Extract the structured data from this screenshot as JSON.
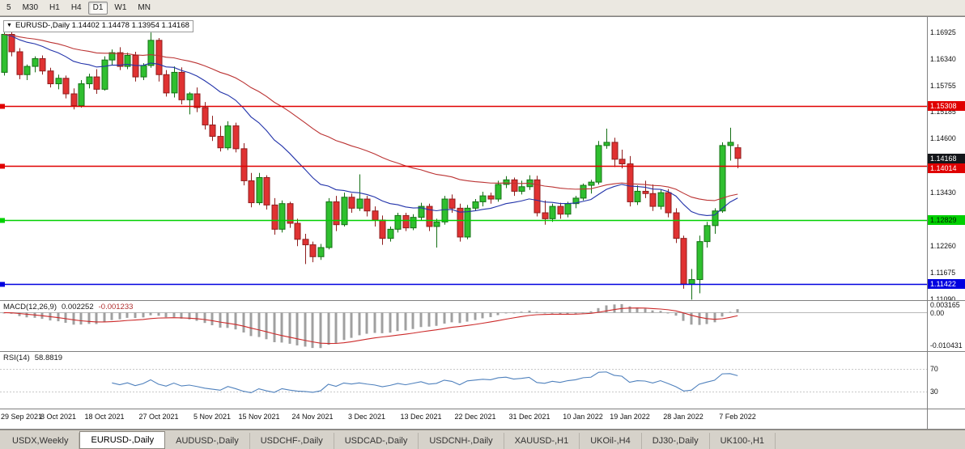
{
  "toolbar": {
    "items": [
      {
        "label": "5"
      },
      {
        "label": "M30"
      },
      {
        "label": "H1"
      },
      {
        "label": "H4"
      },
      {
        "label": "D1",
        "active": true
      },
      {
        "label": "W1"
      },
      {
        "label": "MN"
      }
    ]
  },
  "chart": {
    "menu_icon": "▼",
    "title": "EURUSD-,Daily 1.14402 1.14478 1.13954 1.14168"
  },
  "price_axis_ticks": [
    "1.16925",
    "1.16340",
    "1.15755",
    "1.15185",
    "1.14600",
    "1.14015",
    "1.13430",
    "1.12845",
    "1.12260",
    "1.11675",
    "1.11090"
  ],
  "hlines": [
    {
      "price": 1.15308,
      "label": "1.15308",
      "color": "#e00000",
      "text_color": "#ffffff"
    },
    {
      "price": 1.14014,
      "label": "1.14014",
      "color": "#e00000",
      "text_color": "#ffffff"
    },
    {
      "price": 1.12829,
      "label": "1.12829",
      "color": "#00d000",
      "text_color": "#002200"
    },
    {
      "price": 1.11422,
      "label": "1.11422",
      "color": "#0000e0",
      "text_color": "#ffffff"
    }
  ],
  "current_price": {
    "value": 1.14168,
    "label": "1.14168",
    "bg": "#14161a",
    "text_color": "#ffffff"
  },
  "indicators": {
    "macd": {
      "label": "MACD(12,26,9)",
      "value_main": "0.002252",
      "value_signal": "-0.001233",
      "axis_max_label": "0.003165",
      "axis_zero_label": "0.00",
      "axis_min_label": "-0.010431",
      "scale_max": 0.003165,
      "scale_min": -0.010431,
      "fast": 12,
      "slow": 26,
      "signal": 9,
      "histogram_color": "#a0a0a0",
      "signal_color": "#cc2a2a"
    },
    "rsi": {
      "label": "RSI(14)",
      "value": "58.8819",
      "period": 14,
      "levels": [
        70,
        30
      ],
      "level_labels": [
        "70",
        "30"
      ],
      "line_color": "#4f81bd"
    }
  },
  "tabs": [
    {
      "label": "USDX,Weekly"
    },
    {
      "label": "EURUSD-,Daily",
      "active": true
    },
    {
      "label": "AUDUSD-,Daily"
    },
    {
      "label": "USDCHF-,Daily"
    },
    {
      "label": "USDCAD-,Daily"
    },
    {
      "label": "USDCNH-,Daily"
    },
    {
      "label": "XAUUSD-,H1"
    },
    {
      "label": "UKOil-,H4"
    },
    {
      "label": "DJ30-,Daily"
    },
    {
      "label": "UK100-,H1"
    }
  ],
  "chart_data": {
    "type": "candlestick",
    "symbol": "EURUSD-",
    "timeframe": "Daily",
    "title": "EURUSD-,Daily",
    "current_ohlc": {
      "open": 1.14402,
      "high": 1.14478,
      "low": 1.13954,
      "close": 1.14168
    },
    "price_max": 1.1726,
    "price_min": 1.1107,
    "total_slots": 120,
    "up_color": "#2fbf2f",
    "up_border": "#157015",
    "down_color": "#e03232",
    "down_border": "#8f1d1d",
    "ma_lines": [
      {
        "name": "ma-fast-blue",
        "period": 20,
        "color": "#2233aa"
      },
      {
        "name": "ma-slow-red",
        "period": 45,
        "color": "#bb3333"
      }
    ],
    "date_ticks": [
      {
        "index": 0,
        "label": "29 Sep 2021"
      },
      {
        "index": 7,
        "label": "8 Oct 2021"
      },
      {
        "index": 13,
        "label": "18 Oct 2021"
      },
      {
        "index": 20,
        "label": "27 Oct 2021"
      },
      {
        "index": 27,
        "label": "5 Nov 2021"
      },
      {
        "index": 33,
        "label": "15 Nov 2021"
      },
      {
        "index": 40,
        "label": "24 Nov 2021"
      },
      {
        "index": 47,
        "label": "3 Dec 2021"
      },
      {
        "index": 54,
        "label": "13 Dec 2021"
      },
      {
        "index": 61,
        "label": "22 Dec 2021"
      },
      {
        "index": 68,
        "label": "31 Dec 2021"
      },
      {
        "index": 75,
        "label": "10 Jan 2022"
      },
      {
        "index": 81,
        "label": "19 Jan 2022"
      },
      {
        "index": 88,
        "label": "28 Jan 2022"
      },
      {
        "index": 95,
        "label": "7 Feb 2022"
      }
    ],
    "candles": [
      [
        1.1605,
        1.1692,
        1.1598,
        1.1688
      ],
      [
        1.1688,
        1.1695,
        1.164,
        1.165
      ],
      [
        1.165,
        1.1658,
        1.159,
        1.16
      ],
      [
        1.16,
        1.1622,
        1.1588,
        1.1618
      ],
      [
        1.1618,
        1.164,
        1.1605,
        1.1635
      ],
      [
        1.1635,
        1.1642,
        1.16,
        1.1608
      ],
      [
        1.1608,
        1.1615,
        1.1572,
        1.158
      ],
      [
        1.158,
        1.16,
        1.1568,
        1.1592
      ],
      [
        1.1592,
        1.1598,
        1.1548,
        1.1558
      ],
      [
        1.1558,
        1.157,
        1.1524,
        1.1532
      ],
      [
        1.1532,
        1.1588,
        1.1528,
        1.158
      ],
      [
        1.158,
        1.1602,
        1.157,
        1.1595
      ],
      [
        1.1595,
        1.1612,
        1.1558,
        1.1568
      ],
      [
        1.1568,
        1.164,
        1.1565,
        1.1632
      ],
      [
        1.1632,
        1.1655,
        1.162,
        1.1648
      ],
      [
        1.1648,
        1.166,
        1.161,
        1.1618
      ],
      [
        1.1618,
        1.1648,
        1.1612,
        1.1642
      ],
      [
        1.1642,
        1.165,
        1.1585,
        1.1595
      ],
      [
        1.1595,
        1.1625,
        1.1588,
        1.162
      ],
      [
        1.162,
        1.1692,
        1.1615,
        1.1675
      ],
      [
        1.1675,
        1.168,
        1.1585,
        1.16
      ],
      [
        1.16,
        1.161,
        1.1552,
        1.156
      ],
      [
        1.156,
        1.1618,
        1.155,
        1.1605
      ],
      [
        1.1605,
        1.1616,
        1.1535,
        1.1545
      ],
      [
        1.1545,
        1.1562,
        1.1513,
        1.1558
      ],
      [
        1.1558,
        1.1572,
        1.1518,
        1.1528
      ],
      [
        1.1528,
        1.154,
        1.148,
        1.149
      ],
      [
        1.149,
        1.151,
        1.1455,
        1.1465
      ],
      [
        1.1465,
        1.1488,
        1.1432,
        1.144
      ],
      [
        1.144,
        1.1498,
        1.1435,
        1.1488
      ],
      [
        1.1488,
        1.1495,
        1.143,
        1.1438
      ],
      [
        1.1438,
        1.145,
        1.1358,
        1.1368
      ],
      [
        1.1368,
        1.1385,
        1.131,
        1.132
      ],
      [
        1.132,
        1.1385,
        1.1315,
        1.1375
      ],
      [
        1.1375,
        1.138,
        1.1305,
        1.1315
      ],
      [
        1.1315,
        1.133,
        1.125,
        1.1262
      ],
      [
        1.1262,
        1.1325,
        1.1255,
        1.1318
      ],
      [
        1.1318,
        1.1322,
        1.1265,
        1.1275
      ],
      [
        1.1275,
        1.1285,
        1.1225,
        1.124
      ],
      [
        1.124,
        1.1252,
        1.1186,
        1.1228
      ],
      [
        1.1228,
        1.1235,
        1.119,
        1.1202
      ],
      [
        1.1202,
        1.123,
        1.1195,
        1.1222
      ],
      [
        1.1222,
        1.133,
        1.1218,
        1.1322
      ],
      [
        1.1322,
        1.1335,
        1.1258,
        1.1272
      ],
      [
        1.1272,
        1.1342,
        1.1268,
        1.1332
      ],
      [
        1.1332,
        1.134,
        1.1298,
        1.1308
      ],
      [
        1.1308,
        1.1382,
        1.1302,
        1.1328
      ],
      [
        1.1328,
        1.1335,
        1.129,
        1.1302
      ],
      [
        1.1302,
        1.1312,
        1.1268,
        1.1282
      ],
      [
        1.1282,
        1.1292,
        1.1228,
        1.1242
      ],
      [
        1.1242,
        1.1268,
        1.1235,
        1.1262
      ],
      [
        1.1262,
        1.1298,
        1.1255,
        1.1292
      ],
      [
        1.1292,
        1.1298,
        1.1258,
        1.1265
      ],
      [
        1.1265,
        1.1295,
        1.126,
        1.1288
      ],
      [
        1.1288,
        1.132,
        1.1282,
        1.1312
      ],
      [
        1.1312,
        1.1318,
        1.1258,
        1.1268
      ],
      [
        1.1268,
        1.1285,
        1.1222,
        1.1278
      ],
      [
        1.1278,
        1.1335,
        1.1272,
        1.1328
      ],
      [
        1.1328,
        1.1338,
        1.1298,
        1.1308
      ],
      [
        1.1308,
        1.1318,
        1.1235,
        1.1245
      ],
      [
        1.1245,
        1.1315,
        1.124,
        1.1308
      ],
      [
        1.1308,
        1.1328,
        1.1302,
        1.1322
      ],
      [
        1.1322,
        1.1344,
        1.1312,
        1.1335
      ],
      [
        1.1335,
        1.1342,
        1.1318,
        1.1328
      ],
      [
        1.1328,
        1.1368,
        1.1322,
        1.136
      ],
      [
        1.136,
        1.1378,
        1.1352,
        1.137
      ],
      [
        1.137,
        1.1375,
        1.1335,
        1.1345
      ],
      [
        1.1345,
        1.1368,
        1.1338,
        1.1355
      ],
      [
        1.1355,
        1.138,
        1.1348,
        1.137
      ],
      [
        1.137,
        1.1379,
        1.129,
        1.1298
      ],
      [
        1.1298,
        1.1325,
        1.1272,
        1.1285
      ],
      [
        1.1285,
        1.1318,
        1.1278,
        1.1312
      ],
      [
        1.1312,
        1.132,
        1.1285,
        1.1295
      ],
      [
        1.1295,
        1.1322,
        1.1288,
        1.1318
      ],
      [
        1.1318,
        1.1335,
        1.1308,
        1.133
      ],
      [
        1.133,
        1.1362,
        1.1325,
        1.1358
      ],
      [
        1.1358,
        1.137,
        1.134,
        1.1365
      ],
      [
        1.1365,
        1.1455,
        1.136,
        1.1445
      ],
      [
        1.1445,
        1.1482,
        1.1438,
        1.1452
      ],
      [
        1.1452,
        1.1462,
        1.1398,
        1.1415
      ],
      [
        1.1415,
        1.1436,
        1.1395,
        1.1405
      ],
      [
        1.1405,
        1.1422,
        1.1312,
        1.1322
      ],
      [
        1.1322,
        1.1358,
        1.1315,
        1.1345
      ],
      [
        1.1345,
        1.1368,
        1.133,
        1.134
      ],
      [
        1.134,
        1.136,
        1.1302,
        1.1312
      ],
      [
        1.1312,
        1.1348,
        1.1305,
        1.1342
      ],
      [
        1.1342,
        1.135,
        1.1288,
        1.1298
      ],
      [
        1.1298,
        1.1308,
        1.1232,
        1.1242
      ],
      [
        1.1242,
        1.1248,
        1.1132,
        1.1142
      ],
      [
        1.1142,
        1.1175,
        1.1108,
        1.1152
      ],
      [
        1.1152,
        1.1248,
        1.1122,
        1.1235
      ],
      [
        1.1235,
        1.1278,
        1.1222,
        1.127
      ],
      [
        1.127,
        1.1308,
        1.1252,
        1.1302
      ],
      [
        1.1302,
        1.1452,
        1.1298,
        1.1445
      ],
      [
        1.1445,
        1.1484,
        1.1412,
        1.1452
      ],
      [
        1.14402,
        1.14478,
        1.13954,
        1.14168
      ]
    ]
  }
}
